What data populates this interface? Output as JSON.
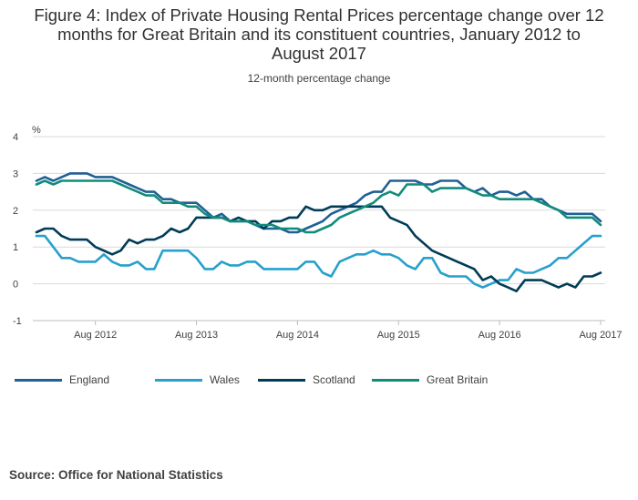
{
  "title_lines": [
    "Figure 4: Index of Private Housing Rental Prices percentage change over 12",
    "months for Great Britain and its constituent countries, January 2012 to",
    "August 2017"
  ],
  "subtitle": "12-month percentage change",
  "source": "Source: Office for National Statistics",
  "colors": {
    "England": "#206095",
    "Wales": "#27a0cc",
    "Scotland": "#003c57",
    "Great Britain": "#118c7b",
    "grid": "#d9d9d9",
    "axis": "#bcbcbc"
  },
  "chart_data": {
    "type": "line",
    "ylabel": "%",
    "ylim": [
      -1,
      4
    ],
    "yticks": [
      "4",
      "3",
      "2",
      "1",
      "0",
      "-1"
    ],
    "xticks": [
      "Aug 2012",
      "Aug 2013",
      "Aug 2014",
      "Aug 2015",
      "Aug 2016",
      "Aug 2017"
    ],
    "x": [
      "Jan 2012",
      "Feb 2012",
      "Mar 2012",
      "Apr 2012",
      "May 2012",
      "Jun 2012",
      "Jul 2012",
      "Aug 2012",
      "Sep 2012",
      "Oct 2012",
      "Nov 2012",
      "Dec 2012",
      "Jan 2013",
      "Feb 2013",
      "Mar 2013",
      "Apr 2013",
      "May 2013",
      "Jun 2013",
      "Jul 2013",
      "Aug 2013",
      "Sep 2013",
      "Oct 2013",
      "Nov 2013",
      "Dec 2013",
      "Jan 2014",
      "Feb 2014",
      "Mar 2014",
      "Apr 2014",
      "May 2014",
      "Jun 2014",
      "Jul 2014",
      "Aug 2014",
      "Sep 2014",
      "Oct 2014",
      "Nov 2014",
      "Dec 2014",
      "Jan 2015",
      "Feb 2015",
      "Mar 2015",
      "Apr 2015",
      "May 2015",
      "Jun 2015",
      "Jul 2015",
      "Aug 2015",
      "Sep 2015",
      "Oct 2015",
      "Nov 2015",
      "Dec 2015",
      "Jan 2016",
      "Feb 2016",
      "Mar 2016",
      "Apr 2016",
      "May 2016",
      "Jun 2016",
      "Jul 2016",
      "Aug 2016",
      "Sep 2016",
      "Oct 2016",
      "Nov 2016",
      "Dec 2016",
      "Jan 2017",
      "Feb 2017",
      "Mar 2017",
      "Apr 2017",
      "May 2017",
      "Jun 2017",
      "Jul 2017",
      "Aug 2017"
    ],
    "series": [
      {
        "name": "England",
        "values": [
          2.8,
          2.9,
          2.8,
          2.9,
          3.0,
          3.0,
          3.0,
          2.9,
          2.9,
          2.9,
          2.8,
          2.7,
          2.6,
          2.5,
          2.5,
          2.3,
          2.3,
          2.2,
          2.2,
          2.2,
          2.0,
          1.8,
          1.9,
          1.7,
          1.7,
          1.7,
          1.6,
          1.5,
          1.5,
          1.5,
          1.4,
          1.4,
          1.5,
          1.6,
          1.7,
          1.9,
          2.0,
          2.1,
          2.2,
          2.4,
          2.5,
          2.5,
          2.8,
          2.8,
          2.8,
          2.8,
          2.7,
          2.7,
          2.8,
          2.8,
          2.8,
          2.6,
          2.5,
          2.6,
          2.4,
          2.5,
          2.5,
          2.4,
          2.5,
          2.3,
          2.3,
          2.1,
          2.0,
          1.9,
          1.9,
          1.9,
          1.9,
          1.7
        ]
      },
      {
        "name": "Wales",
        "values": [
          1.3,
          1.3,
          1.0,
          0.7,
          0.7,
          0.6,
          0.6,
          0.6,
          0.8,
          0.6,
          0.5,
          0.5,
          0.6,
          0.4,
          0.4,
          0.9,
          0.9,
          0.9,
          0.9,
          0.7,
          0.4,
          0.4,
          0.6,
          0.5,
          0.5,
          0.6,
          0.6,
          0.4,
          0.4,
          0.4,
          0.4,
          0.4,
          0.6,
          0.6,
          0.3,
          0.2,
          0.6,
          0.7,
          0.8,
          0.8,
          0.9,
          0.8,
          0.8,
          0.7,
          0.5,
          0.4,
          0.7,
          0.7,
          0.3,
          0.2,
          0.2,
          0.2,
          0.0,
          -0.1,
          0.0,
          0.1,
          0.1,
          0.4,
          0.3,
          0.3,
          0.4,
          0.5,
          0.7,
          0.7,
          0.9,
          1.1,
          1.3,
          1.3
        ]
      },
      {
        "name": "Scotland",
        "values": [
          1.4,
          1.5,
          1.5,
          1.3,
          1.2,
          1.2,
          1.2,
          1.0,
          0.9,
          0.8,
          0.9,
          1.2,
          1.1,
          1.2,
          1.2,
          1.3,
          1.5,
          1.4,
          1.5,
          1.8,
          1.8,
          1.8,
          1.8,
          1.7,
          1.8,
          1.7,
          1.7,
          1.5,
          1.7,
          1.7,
          1.8,
          1.8,
          2.1,
          2.0,
          2.0,
          2.1,
          2.1,
          2.1,
          2.1,
          2.1,
          2.1,
          2.1,
          1.8,
          1.7,
          1.6,
          1.3,
          1.1,
          0.9,
          0.8,
          0.7,
          0.6,
          0.5,
          0.4,
          0.1,
          0.2,
          0.0,
          -0.1,
          -0.2,
          0.1,
          0.1,
          0.1,
          0.0,
          -0.1,
          0.0,
          -0.1,
          0.2,
          0.2,
          0.3
        ]
      },
      {
        "name": "Great Britain",
        "values": [
          2.7,
          2.8,
          2.7,
          2.8,
          2.8,
          2.8,
          2.8,
          2.8,
          2.8,
          2.8,
          2.7,
          2.6,
          2.5,
          2.4,
          2.4,
          2.2,
          2.2,
          2.2,
          2.1,
          2.1,
          1.9,
          1.8,
          1.8,
          1.7,
          1.7,
          1.7,
          1.6,
          1.6,
          1.6,
          1.5,
          1.5,
          1.5,
          1.4,
          1.4,
          1.5,
          1.6,
          1.8,
          1.9,
          2.0,
          2.1,
          2.2,
          2.4,
          2.5,
          2.4,
          2.7,
          2.7,
          2.7,
          2.5,
          2.6,
          2.6,
          2.6,
          2.6,
          2.5,
          2.4,
          2.4,
          2.3,
          2.3,
          2.3,
          2.3,
          2.3,
          2.2,
          2.1,
          2.0,
          1.8,
          1.8,
          1.8,
          1.8,
          1.6
        ]
      }
    ],
    "legend": [
      "England",
      "Wales",
      "Scotland",
      "Great Britain"
    ],
    "legend_position": "bottom-left",
    "grid": true
  }
}
